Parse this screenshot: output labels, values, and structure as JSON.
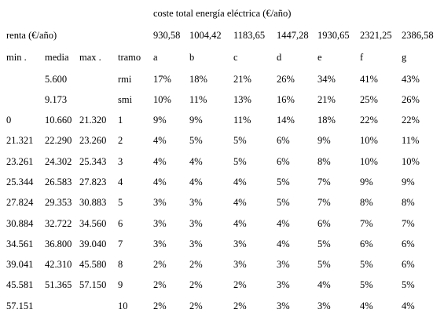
{
  "title": "coste total energía eléctrica (€/año)",
  "renta_label": "renta (€/año)",
  "costs": [
    "930,58",
    "1004,42",
    "1183,65",
    "1447,28",
    "1930,65",
    "2321,25",
    "2386,58"
  ],
  "header": {
    "min": "min .",
    "media": "media",
    "max": "max .",
    "tramo": "tramo",
    "letters": [
      "a",
      "b",
      "c",
      "d",
      "e",
      "f",
      "g"
    ]
  },
  "rmi_row": {
    "media": "5.600",
    "label": "rmi",
    "values": [
      "17%",
      "18%",
      "21%",
      "26%",
      "34%",
      "41%",
      "43%"
    ]
  },
  "smi_row": {
    "media": "9.173",
    "label": "smi",
    "values": [
      "10%",
      "11%",
      "13%",
      "16%",
      "21%",
      "25%",
      "26%"
    ]
  },
  "rows": [
    {
      "min": "0",
      "media": "10.660",
      "max": "21.320",
      "tramo": "1",
      "values": [
        "9%",
        "9%",
        "11%",
        "14%",
        "18%",
        "22%",
        "22%"
      ]
    },
    {
      "min": "21.321",
      "media": "22.290",
      "max": "23.260",
      "tramo": "2",
      "values": [
        "4%",
        "5%",
        "5%",
        "6%",
        "9%",
        "10%",
        "11%"
      ]
    },
    {
      "min": "23.261",
      "media": "24.302",
      "max": "25.343",
      "tramo": "3",
      "values": [
        "4%",
        "4%",
        "5%",
        "6%",
        "8%",
        "10%",
        "10%"
      ]
    },
    {
      "min": "25.344",
      "media": "26.583",
      "max": "27.823",
      "tramo": "4",
      "values": [
        "4%",
        "4%",
        "4%",
        "5%",
        "7%",
        "9%",
        "9%"
      ]
    },
    {
      "min": "27.824",
      "media": "29.353",
      "max": "30.883",
      "tramo": "5",
      "values": [
        "3%",
        "3%",
        "4%",
        "5%",
        "7%",
        "8%",
        "8%"
      ]
    },
    {
      "min": "30.884",
      "media": "32.722",
      "max": "34.560",
      "tramo": "6",
      "values": [
        "3%",
        "3%",
        "4%",
        "4%",
        "6%",
        "7%",
        "7%"
      ]
    },
    {
      "min": "34.561",
      "media": "36.800",
      "max": "39.040",
      "tramo": "7",
      "values": [
        "3%",
        "3%",
        "3%",
        "4%",
        "5%",
        "6%",
        "6%"
      ]
    },
    {
      "min": "39.041",
      "media": "42.310",
      "max": "45.580",
      "tramo": "8",
      "values": [
        "2%",
        "2%",
        "3%",
        "3%",
        "5%",
        "5%",
        "6%"
      ]
    },
    {
      "min": "45.581",
      "media": "51.365",
      "max": "57.150",
      "tramo": "9",
      "values": [
        "2%",
        "2%",
        "2%",
        "3%",
        "4%",
        "5%",
        "5%"
      ]
    },
    {
      "min": "57.151",
      "media": "",
      "max": "",
      "tramo": "10",
      "values": [
        "2%",
        "2%",
        "2%",
        "3%",
        "3%",
        "4%",
        "4%"
      ]
    }
  ]
}
